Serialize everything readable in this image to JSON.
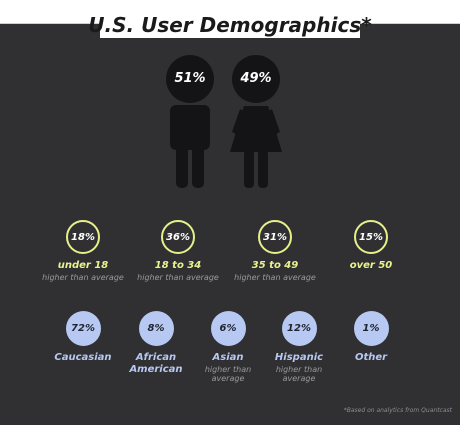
{
  "title": "U.S. User Demographics*",
  "gender": {
    "male_pct": "51%",
    "female_pct": "49%"
  },
  "age_groups": [
    {
      "pct": "18%",
      "label": "under 18",
      "note": "higher than average"
    },
    {
      "pct": "36%",
      "label": "18 to 34",
      "note": "higher than average"
    },
    {
      "pct": "31%",
      "label": "35 to 49",
      "note": "higher than average"
    },
    {
      "pct": "15%",
      "label": "over 50",
      "note": ""
    }
  ],
  "ethnicity": [
    {
      "pct": "72%",
      "label": "Caucasian",
      "note": ""
    },
    {
      "pct": "8%",
      "label": "African American",
      "note": ""
    },
    {
      "pct": "6%",
      "label": "Asian",
      "note": "higher than average"
    },
    {
      "pct": "12%",
      "label": "Hispanic",
      "note": "higher than average"
    },
    {
      "pct": "1%",
      "label": "Other",
      "note": ""
    }
  ],
  "footnote": "*Based on analytics from Quantcast",
  "colors": {
    "background": "#303033",
    "age_accent": "#eaf38e",
    "ethnicity_accent": "#b7c9f2",
    "figure": "#141416"
  }
}
